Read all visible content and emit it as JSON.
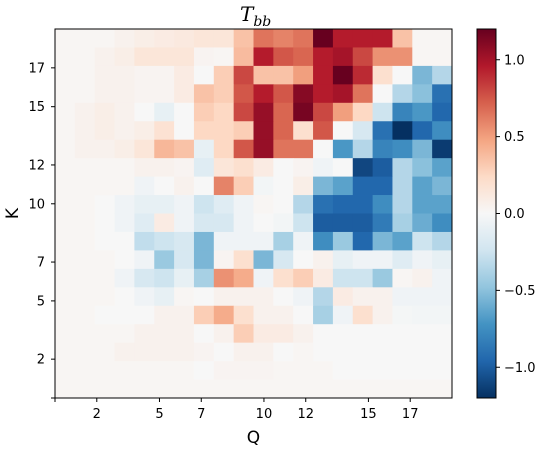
{
  "chart_data": {
    "type": "heatmap",
    "title_main": "T",
    "title_sub": "bb",
    "xlabel": "Q",
    "ylabel": "K",
    "x_range": [
      0,
      19
    ],
    "y_range": [
      0,
      19
    ],
    "xticks": [
      0,
      2,
      5,
      7,
      10,
      12,
      15,
      17
    ],
    "xtick_labels": [
      "",
      "2",
      "5",
      "7",
      "10",
      "12",
      "15",
      "17"
    ],
    "yticks": [
      0,
      2,
      5,
      7,
      10,
      12,
      15,
      17
    ],
    "ytick_labels": [
      "",
      "2",
      "5",
      "7",
      "10",
      "12",
      "15",
      "17"
    ],
    "colorbar": {
      "colormap": "RdBu_r",
      "vmin": -1.2,
      "vmax": 1.2,
      "ticks": [
        -1.0,
        -0.5,
        0.0,
        0.5,
        1.0
      ],
      "tick_labels": [
        "−1.0",
        "−0.5",
        "0.0",
        "0.5",
        "1.0"
      ]
    },
    "grid": false,
    "matrix_rows_top_to_bottom": [
      [
        0.02,
        0.02,
        0.02,
        0.05,
        0.08,
        0.1,
        0.12,
        0.15,
        0.15,
        0.35,
        0.65,
        0.6,
        0.65,
        1.2,
        0.95,
        0.95,
        0.95,
        0.35,
        0.02,
        0.02
      ],
      [
        0.02,
        0.02,
        0.05,
        0.08,
        0.15,
        0.15,
        0.15,
        0.03,
        0.02,
        0.38,
        0.95,
        0.75,
        0.7,
        0.95,
        1.0,
        0.8,
        0.55,
        0.55,
        0.02,
        0.02
      ],
      [
        0.02,
        0.02,
        0.05,
        0.05,
        0.03,
        0.03,
        0.1,
        0.0,
        0.3,
        0.8,
        0.35,
        0.35,
        0.5,
        0.95,
        1.2,
        0.9,
        0.2,
        0.0,
        -0.55,
        -0.35
      ],
      [
        0.02,
        0.02,
        0.05,
        0.05,
        0.03,
        0.03,
        0.1,
        0.35,
        0.3,
        0.75,
        0.95,
        0.75,
        1.1,
        0.95,
        1.0,
        0.65,
        0.0,
        -0.35,
        -0.5,
        -0.9
      ],
      [
        0.02,
        0.05,
        0.08,
        0.05,
        0.0,
        -0.1,
        0.0,
        0.3,
        0.25,
        0.8,
        1.05,
        0.7,
        1.15,
        0.8,
        0.5,
        0.25,
        -0.25,
        -0.8,
        -0.7,
        -0.95
      ],
      [
        0.02,
        0.05,
        0.08,
        0.05,
        0.08,
        0.18,
        0.0,
        0.25,
        0.25,
        0.3,
        1.05,
        0.7,
        0.2,
        0.75,
        0.0,
        -0.2,
        -0.9,
        -1.2,
        -0.95,
        -0.75
      ],
      [
        0.02,
        0.05,
        0.05,
        0.08,
        0.15,
        0.4,
        0.35,
        -0.1,
        0.25,
        0.75,
        1.05,
        0.65,
        0.65,
        0.0,
        -0.7,
        -0.35,
        -0.8,
        -0.75,
        -0.55,
        -1.15
      ],
      [
        0.02,
        0.02,
        0.02,
        0.02,
        0.05,
        0.05,
        0.03,
        -0.15,
        0.15,
        0.2,
        0.1,
        0.0,
        0.03,
        -0.05,
        0.0,
        -1.1,
        -1.0,
        -0.35,
        -0.5,
        -0.65
      ],
      [
        0.02,
        0.02,
        0.02,
        0.02,
        -0.05,
        0.0,
        0.05,
        0.0,
        0.6,
        0.3,
        -0.03,
        0.0,
        0.08,
        -0.55,
        -0.65,
        -0.95,
        -0.95,
        -0.35,
        -0.65,
        -0.55
      ],
      [
        0.02,
        0.02,
        0.0,
        -0.05,
        -0.1,
        -0.1,
        -0.05,
        -0.25,
        -0.15,
        -0.05,
        0.02,
        0.0,
        -0.35,
        -0.9,
        -0.95,
        -0.95,
        -0.75,
        -0.35,
        -0.65,
        -0.65
      ],
      [
        0.02,
        0.02,
        0.0,
        -0.05,
        -0.15,
        0.1,
        -0.05,
        -0.2,
        -0.2,
        -0.05,
        0.0,
        -0.03,
        -0.25,
        -1.0,
        -1.0,
        -1.0,
        -0.85,
        -0.4,
        -0.6,
        -0.75
      ],
      [
        0.02,
        0.02,
        0.0,
        0.0,
        -0.3,
        -0.25,
        -0.2,
        -0.55,
        -0.05,
        -0.05,
        -0.05,
        -0.4,
        -0.05,
        -0.75,
        -0.45,
        -0.95,
        -0.55,
        -0.65,
        -0.25,
        -0.35
      ],
      [
        0.02,
        0.02,
        0.02,
        0.0,
        -0.05,
        -0.45,
        -0.2,
        -0.55,
        0.03,
        0.2,
        -0.55,
        -0.2,
        0.0,
        0.05,
        -0.1,
        -0.05,
        -0.05,
        -0.15,
        -0.05,
        -0.1
      ],
      [
        0.02,
        0.02,
        0.02,
        -0.05,
        -0.2,
        -0.25,
        -0.1,
        -0.4,
        0.55,
        0.45,
        -0.05,
        0.2,
        0.3,
        0.1,
        -0.25,
        -0.25,
        -0.45,
        0.02,
        0.05,
        -0.05
      ],
      [
        0.02,
        0.02,
        0.02,
        0.0,
        -0.05,
        -0.1,
        0.02,
        0.0,
        0.05,
        0.05,
        0.05,
        0.0,
        -0.05,
        -0.35,
        0.1,
        0.05,
        0.05,
        -0.05,
        -0.05,
        -0.05
      ],
      [
        0.02,
        0.02,
        0.0,
        0.0,
        0.0,
        0.05,
        0.05,
        0.3,
        0.45,
        0.2,
        0.05,
        0.05,
        0.0,
        -0.4,
        -0.05,
        0.2,
        0.05,
        -0.02,
        -0.03,
        -0.03
      ],
      [
        0.02,
        0.02,
        0.02,
        0.02,
        0.05,
        0.05,
        0.05,
        0.0,
        0.05,
        0.3,
        0.1,
        0.1,
        0.05,
        0.0,
        0.0,
        0.0,
        0.0,
        0.0,
        0.0,
        0.0
      ],
      [
        0.02,
        0.02,
        0.02,
        0.05,
        0.05,
        0.05,
        0.05,
        0.03,
        0.0,
        0.05,
        0.05,
        0.0,
        0.02,
        0.0,
        0.0,
        0.0,
        0.0,
        0.0,
        0.0,
        0.0
      ],
      [
        0.02,
        0.02,
        0.02,
        0.02,
        0.02,
        0.02,
        0.02,
        0.0,
        0.03,
        0.03,
        0.03,
        0.02,
        0.02,
        0.02,
        0.0,
        0.0,
        0.0,
        0.0,
        0.0,
        0.0
      ],
      [
        0.02,
        0.02,
        0.02,
        0.02,
        0.02,
        0.02,
        0.02,
        0.02,
        0.02,
        0.02,
        0.02,
        0.02,
        0.02,
        0.02,
        0.02,
        0.02,
        0.02,
        0.02,
        0.02,
        0.02
      ]
    ]
  }
}
